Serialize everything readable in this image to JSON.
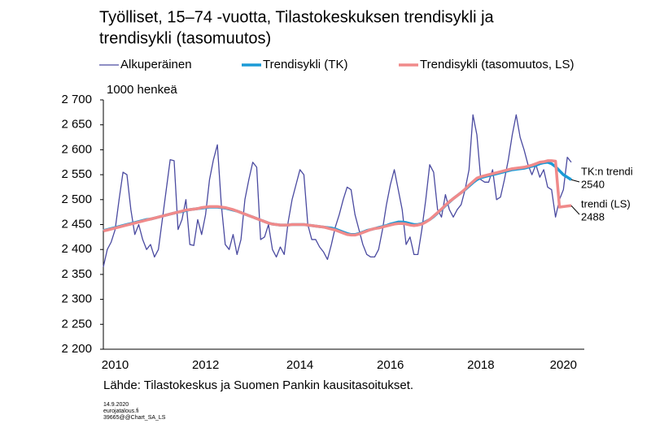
{
  "chart_data": {
    "type": "line",
    "title": [
      "Työlliset, 15–74 -vuotta, Tilastokeskuksen trendisykli ja",
      "trendisykli (tasomuutos)"
    ],
    "y_label": "1000 henkeä",
    "source": "Lähde: Tilastokeskus ja Suomen Pankin kausitasoitukset.",
    "footer": [
      "14.9.2020",
      "eurojatalous.fi",
      "39665@@Chart_SA_LS"
    ],
    "ylim": [
      2200,
      2700
    ],
    "yticks": [
      {
        "value": 2200,
        "label": "2 200"
      },
      {
        "value": 2250,
        "label": "2 250"
      },
      {
        "value": 2300,
        "label": "2 300"
      },
      {
        "value": 2350,
        "label": "2 350"
      },
      {
        "value": 2400,
        "label": "2 400"
      },
      {
        "value": 2450,
        "label": "2 450"
      },
      {
        "value": 2500,
        "label": "2 500"
      },
      {
        "value": 2550,
        "label": "2 550"
      },
      {
        "value": 2600,
        "label": "2 600"
      },
      {
        "value": 2650,
        "label": "2 650"
      },
      {
        "value": 2700,
        "label": "2 700"
      }
    ],
    "categories": [
      null,
      null,
      null,
      "2010",
      null,
      null,
      null,
      null,
      null,
      null,
      null,
      null,
      null,
      null,
      null,
      null,
      null,
      null,
      null,
      null,
      null,
      null,
      null,
      null,
      null,
      null,
      "2012",
      null,
      null,
      null,
      null,
      null,
      null,
      null,
      null,
      null,
      null,
      null,
      null,
      null,
      null,
      null,
      null,
      null,
      null,
      null,
      null,
      null,
      null,
      null,
      "2014",
      null,
      null,
      null,
      null,
      null,
      null,
      null,
      null,
      null,
      null,
      null,
      null,
      null,
      null,
      null,
      null,
      null,
      null,
      null,
      null,
      null,
      null,
      "2016",
      null,
      null,
      null,
      null,
      null,
      null,
      null,
      null,
      null,
      null,
      null,
      null,
      null,
      null,
      null,
      null,
      null,
      null,
      null,
      null,
      null,
      null,
      "2018",
      null,
      null,
      null,
      null,
      null,
      null,
      null,
      null,
      null,
      null,
      null,
      null,
      null,
      null,
      null,
      null,
      null,
      null,
      null,
      null,
      "2020",
      null,
      null
    ],
    "series": [
      {
        "name": "Alkuperäinen",
        "color": "#4a4aa0",
        "width": 1.3,
        "values": [
          2365,
          2400,
          2415,
          2440,
          2500,
          2555,
          2550,
          2480,
          2430,
          2450,
          2420,
          2400,
          2410,
          2385,
          2400,
          2460,
          2520,
          2580,
          2578,
          2440,
          2460,
          2500,
          2410,
          2408,
          2460,
          2430,
          2470,
          2540,
          2580,
          2610,
          2490,
          2410,
          2400,
          2430,
          2390,
          2420,
          2500,
          2540,
          2575,
          2565,
          2420,
          2425,
          2450,
          2400,
          2385,
          2405,
          2390,
          2455,
          2500,
          2530,
          2560,
          2550,
          2450,
          2420,
          2420,
          2405,
          2395,
          2380,
          2410,
          2445,
          2470,
          2500,
          2525,
          2520,
          2470,
          2440,
          2410,
          2390,
          2385,
          2385,
          2400,
          2440,
          2490,
          2530,
          2560,
          2520,
          2480,
          2410,
          2425,
          2390,
          2390,
          2440,
          2500,
          2570,
          2555,
          2480,
          2465,
          2510,
          2480,
          2465,
          2480,
          2490,
          2520,
          2560,
          2670,
          2630,
          2540,
          2535,
          2535,
          2560,
          2500,
          2505,
          2540,
          2580,
          2630,
          2670,
          2625,
          2600,
          2570,
          2550,
          2570,
          2545,
          2560,
          2525,
          2520,
          2465,
          2500,
          2520,
          2585,
          2575
        ]
      },
      {
        "name": "Trendisykli (TK)",
        "color": "#1a9ad6",
        "width": 3.5,
        "values": [
          2438,
          2440,
          2442,
          2444,
          2446,
          2448,
          2450,
          2452,
          2454,
          2456,
          2458,
          2460,
          2461,
          2463,
          2465,
          2467,
          2469,
          2471,
          2473,
          2475,
          2476,
          2478,
          2480,
          2481,
          2482,
          2483,
          2484,
          2485,
          2485,
          2485,
          2484,
          2483,
          2481,
          2479,
          2477,
          2474,
          2471,
          2468,
          2465,
          2462,
          2459,
          2456,
          2453,
          2451,
          2450,
          2449,
          2449,
          2449,
          2450,
          2450,
          2450,
          2450,
          2449,
          2448,
          2447,
          2446,
          2445,
          2444,
          2443,
          2441,
          2438,
          2435,
          2432,
          2430,
          2430,
          2432,
          2435,
          2438,
          2440,
          2442,
          2444,
          2446,
          2448,
          2451,
          2453,
          2455,
          2455,
          2454,
          2452,
          2450,
          2450,
          2452,
          2456,
          2460,
          2466,
          2473,
          2480,
          2488,
          2495,
          2502,
          2508,
          2514,
          2520,
          2527,
          2534,
          2540,
          2544,
          2546,
          2548,
          2550,
          2552,
          2554,
          2556,
          2558,
          2560,
          2561,
          2562,
          2563,
          2565,
          2567,
          2569,
          2572,
          2574,
          2575,
          2572,
          2566,
          2558,
          2550,
          2545,
          2540
        ]
      },
      {
        "name": "Trendisykli (tasomuutos, LS)",
        "color": "#f08a8a",
        "width": 3.5,
        "values": [
          2437,
          2439,
          2441,
          2443,
          2445,
          2447,
          2449,
          2451,
          2453,
          2455,
          2457,
          2459,
          2461,
          2463,
          2465,
          2467,
          2469,
          2471,
          2473,
          2475,
          2477,
          2479,
          2480,
          2481,
          2482,
          2484,
          2485,
          2486,
          2486,
          2486,
          2485,
          2484,
          2482,
          2480,
          2477,
          2474,
          2471,
          2468,
          2465,
          2462,
          2459,
          2456,
          2453,
          2451,
          2450,
          2449,
          2449,
          2449,
          2450,
          2450,
          2450,
          2450,
          2449,
          2448,
          2447,
          2446,
          2445,
          2443,
          2441,
          2439,
          2436,
          2433,
          2430,
          2429,
          2429,
          2431,
          2434,
          2437,
          2440,
          2442,
          2443,
          2445,
          2447,
          2449,
          2451,
          2452,
          2452,
          2451,
          2449,
          2448,
          2449,
          2451,
          2455,
          2460,
          2467,
          2474,
          2481,
          2489,
          2496,
          2502,
          2508,
          2514,
          2521,
          2529,
          2536,
          2543,
          2546,
          2548,
          2550,
          2552,
          2554,
          2556,
          2558,
          2560,
          2562,
          2563,
          2564,
          2565,
          2567,
          2569,
          2572,
          2575,
          2576,
          2578,
          2578,
          2577,
          2485,
          2486,
          2487,
          2488
        ]
      }
    ],
    "annotations": [
      {
        "label": "TK:n trendi",
        "value": 2540
      },
      {
        "label": "trendi (LS)",
        "value": 2488
      }
    ],
    "legend": "top",
    "grid": false
  }
}
